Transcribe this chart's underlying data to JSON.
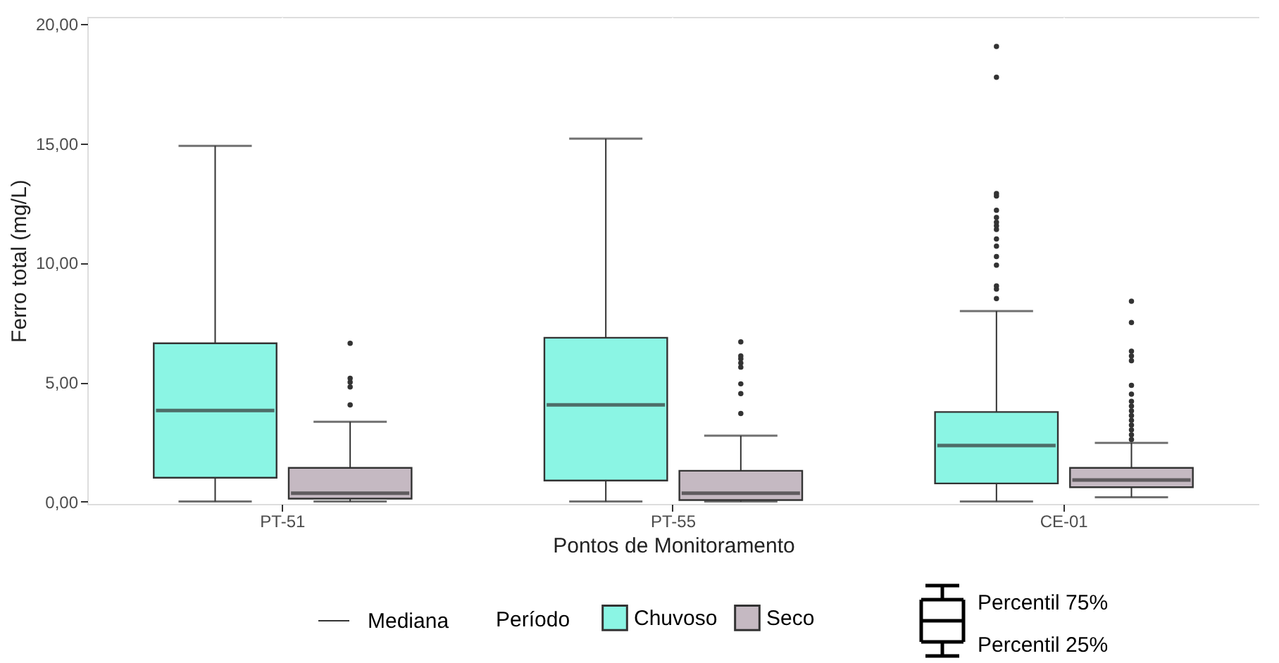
{
  "chart_data": {
    "type": "box",
    "xlabel": "Pontos de Monitoramento",
    "ylabel": "Ferro total (mg/L)",
    "legend_title": "Período",
    "legend": "bottom",
    "grid": true,
    "categories": [
      "PT-51",
      "PT-55",
      "CE-01"
    ],
    "ylim": [
      -0.1,
      20.3
    ],
    "yticks": [
      {
        "value": 0,
        "label": "0,00"
      },
      {
        "value": 5,
        "label": "5,00"
      },
      {
        "value": 10,
        "label": "10,00"
      },
      {
        "value": 15,
        "label": "15,00"
      },
      {
        "value": 20,
        "label": "20,00"
      }
    ],
    "series": [
      {
        "name": "Chuvoso",
        "color": "#8bf5e4",
        "boxes": [
          {
            "low": 0,
            "q1": 1.0,
            "median": 3.81,
            "q3": 6.63,
            "high": 14.9
          },
          {
            "low": 0,
            "q1": 0.88,
            "median": 4.05,
            "q3": 6.86,
            "high": 15.2
          },
          {
            "low": 0,
            "q1": 0.76,
            "median": 2.35,
            "q3": 3.75,
            "high": 7.98,
            "outliers": [
              8.5,
              8.9,
              9.03,
              9.9,
              10.26,
              10.7,
              11.0,
              11.4,
              11.55,
              11.7,
              11.9,
              12.2,
              12.8,
              12.9,
              17.77,
              19.06
            ]
          }
        ]
      },
      {
        "name": "Seco",
        "color": "#c5b9c2",
        "boxes": [
          {
            "low": 0,
            "q1": 0.12,
            "median": 0.35,
            "q3": 1.41,
            "high": 3.34,
            "outliers": [
              4.05,
              4.8,
              5.0,
              5.16,
              6.63
            ]
          },
          {
            "low": 0,
            "q1": 0.06,
            "median": 0.35,
            "q3": 1.29,
            "high": 2.76,
            "outliers": [
              3.69,
              4.52,
              4.93,
              5.63,
              5.8,
              5.98,
              6.1,
              6.69
            ]
          },
          {
            "low": 0.18,
            "q1": 0.6,
            "median": 0.9,
            "q3": 1.41,
            "high": 2.46,
            "outliers": [
              2.6,
              2.8,
              3.0,
              3.2,
              3.4,
              3.6,
              3.8,
              4.0,
              4.2,
              4.5,
              4.87,
              5.9,
              6.1,
              6.3,
              7.5,
              8.39
            ]
          }
        ]
      }
    ],
    "annotations": [
      "Mediana",
      "Percentil 75%",
      "Percentil 25%"
    ]
  }
}
